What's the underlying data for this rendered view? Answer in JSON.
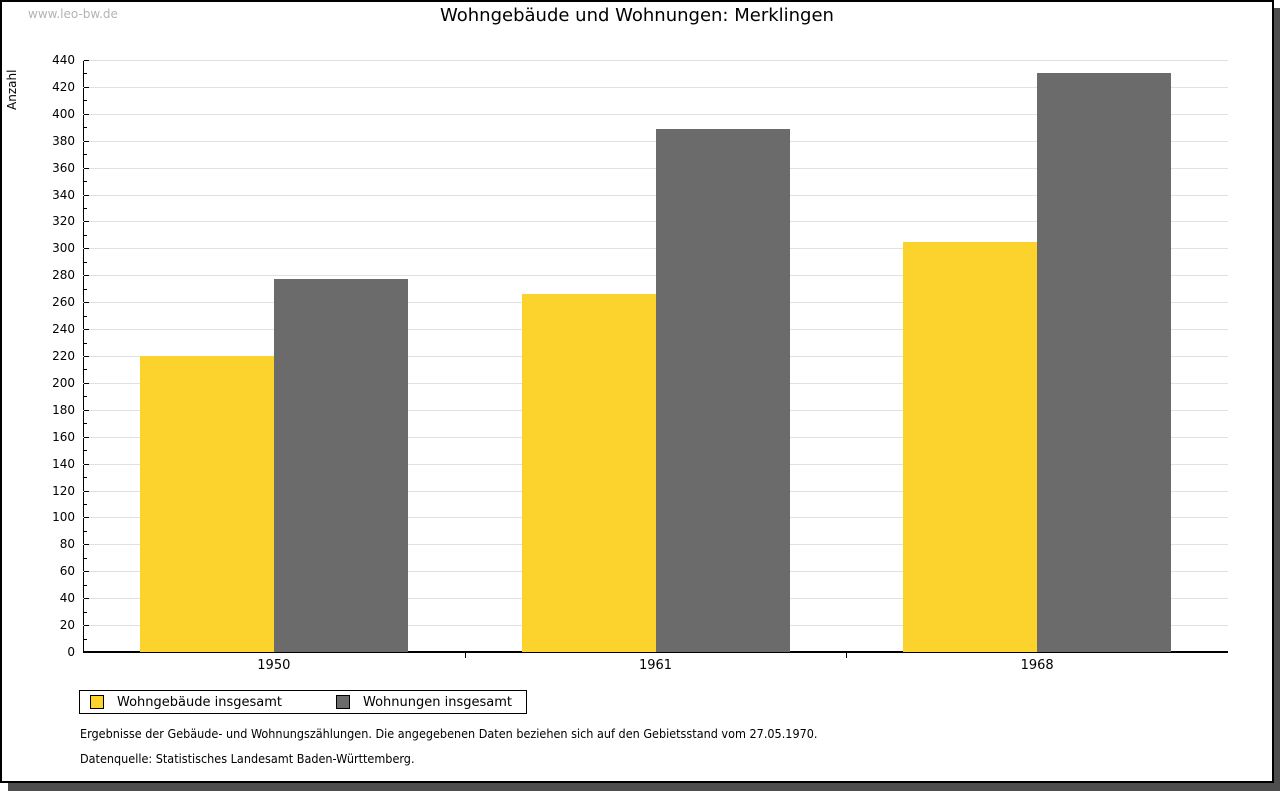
{
  "watermark": "www.leo-bw.de",
  "title": "Wohngebäude und Wohnungen: Merklingen",
  "chart_data": {
    "type": "bar",
    "title": "Wohngebäude und Wohnungen: Merklingen",
    "categories": [
      "1950",
      "1961",
      "1968"
    ],
    "series": [
      {
        "name": "Wohngebäude insgesamt",
        "color": "#FCD32D",
        "values": [
          220,
          266,
          305
        ]
      },
      {
        "name": "Wohnungen insgesamt",
        "color": "#6B6B6B",
        "values": [
          277,
          389,
          430
        ]
      }
    ],
    "xlabel": "",
    "ylabel": "Anzahl",
    "ylim": [
      0,
      440
    ],
    "ytick_step": 20,
    "yminor_step": 10,
    "grid": true,
    "gridline_color": "#E1E1E1",
    "legend_position": "bottom"
  },
  "footer": {
    "line1": "Ergebnisse der Gebäude- und Wohnungszählungen. Die angegebenen Daten beziehen sich auf den Gebietsstand vom 27.05.1970.",
    "line2": "Datenquelle: Statistisches Landesamt Baden-Württemberg."
  }
}
